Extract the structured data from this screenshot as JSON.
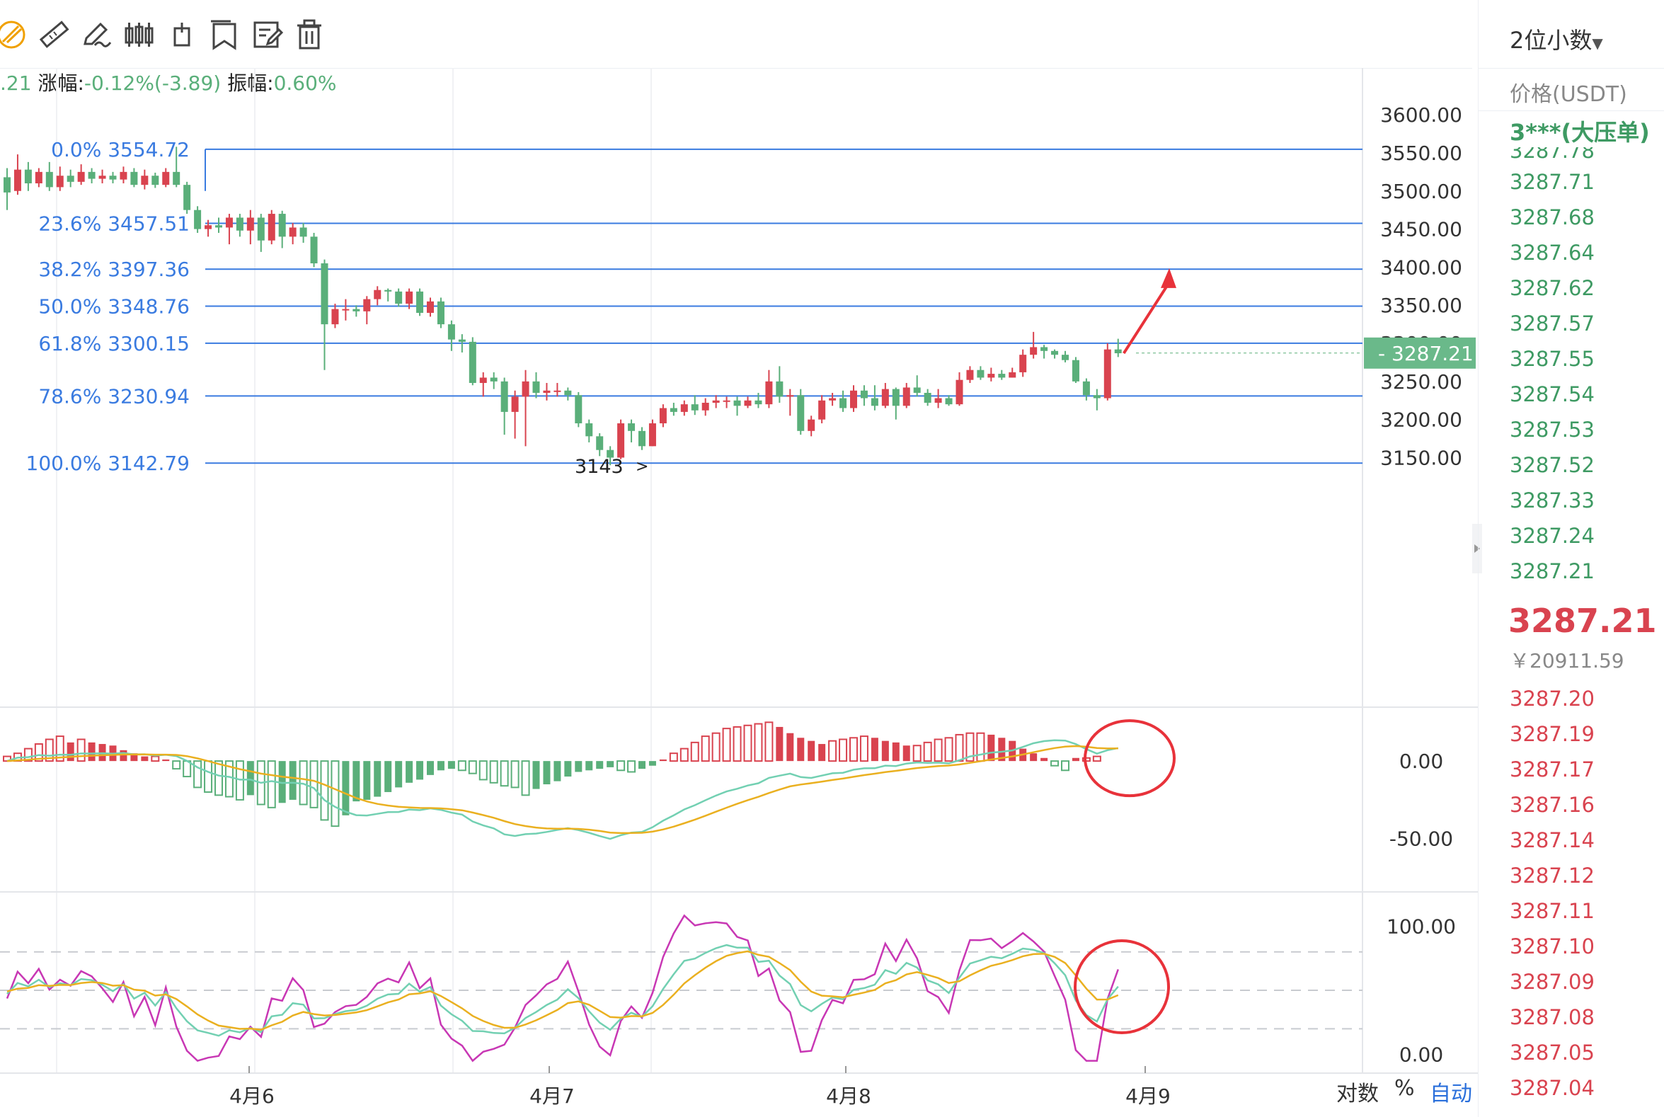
{
  "toolbar": {
    "tools": [
      {
        "icon": "ruler-icon"
      },
      {
        "icon": "pen-icon"
      },
      {
        "icon": "candlestick-icon"
      },
      {
        "icon": "tag-icon"
      },
      {
        "icon": "bookmark-icon"
      },
      {
        "icon": "edit-note-icon"
      },
      {
        "icon": "trash-icon"
      }
    ]
  },
  "infobar": {
    "prefix": ".21",
    "change_label": "涨幅:",
    "change_value": "-0.12%(-3.89)",
    "amplitude_label": "振幅:",
    "amplitude_value": "0.60%"
  },
  "colors": {
    "up": "#d9434f",
    "down": "#5aaf7a",
    "fib": "#3a7be0",
    "dif": "#72d0b2",
    "dea": "#eab020",
    "kdj_j": "#c837b4",
    "annotation": "#e8323a"
  },
  "chart_data": [
    {
      "type": "candlestick",
      "ylim": [
        3130,
        3615
      ],
      "yticks": [
        "3600.00",
        "3550.00",
        "3500.00",
        "3450.00",
        "3400.00",
        "3350.00",
        "3300.00",
        "3250.00",
        "3200.00",
        "3150.00"
      ],
      "xticks": [
        "4月6",
        "4月7",
        "4月8",
        "4月9"
      ],
      "last_price": "3287.21",
      "low_marker": "3143",
      "fib_levels": [
        {
          "label": "0.0% 3554.72",
          "value": 3554.72
        },
        {
          "label": "23.6% 3457.51",
          "value": 3457.51
        },
        {
          "label": "38.2% 3397.36",
          "value": 3397.36
        },
        {
          "label": "50.0% 3348.76",
          "value": 3348.76
        },
        {
          "label": "61.8% 3300.15",
          "value": 3300.15
        },
        {
          "label": "78.6% 3230.94",
          "value": 3230.94
        },
        {
          "label": "100.0% 3142.79",
          "value": 3142.79
        }
      ],
      "candles": [
        [
          3518,
          3498,
          3530,
          3475
        ],
        [
          3500,
          3528,
          3548,
          3495
        ],
        [
          3528,
          3510,
          3538,
          3500
        ],
        [
          3510,
          3525,
          3530,
          3505
        ],
        [
          3525,
          3505,
          3538,
          3500
        ],
        [
          3505,
          3520,
          3532,
          3500
        ],
        [
          3520,
          3512,
          3528,
          3505
        ],
        [
          3512,
          3525,
          3535,
          3508
        ],
        [
          3525,
          3516,
          3530,
          3510
        ],
        [
          3516,
          3520,
          3528,
          3510
        ],
        [
          3520,
          3515,
          3525,
          3510
        ],
        [
          3515,
          3525,
          3532,
          3510
        ],
        [
          3525,
          3508,
          3530,
          3505
        ],
        [
          3508,
          3520,
          3528,
          3502
        ],
        [
          3520,
          3508,
          3524,
          3504
        ],
        [
          3508,
          3525,
          3530,
          3505
        ],
        [
          3525,
          3508,
          3558,
          3505
        ],
        [
          3508,
          3475,
          3512,
          3470
        ],
        [
          3475,
          3450,
          3480,
          3445
        ],
        [
          3450,
          3455,
          3462,
          3440
        ],
        [
          3455,
          3452,
          3465,
          3445
        ],
        [
          3452,
          3465,
          3470,
          3430
        ],
        [
          3465,
          3448,
          3470,
          3440
        ],
        [
          3448,
          3465,
          3475,
          3430
        ],
        [
          3465,
          3435,
          3470,
          3420
        ],
        [
          3435,
          3470,
          3475,
          3430
        ],
        [
          3470,
          3440,
          3474,
          3425
        ],
        [
          3440,
          3452,
          3458,
          3430
        ],
        [
          3452,
          3440,
          3458,
          3432
        ],
        [
          3440,
          3405,
          3445,
          3400
        ],
        [
          3405,
          3325,
          3410,
          3265
        ],
        [
          3325,
          3345,
          3352,
          3320
        ],
        [
          3345,
          3345,
          3358,
          3330
        ],
        [
          3345,
          3342,
          3350,
          3335
        ],
        [
          3342,
          3358,
          3362,
          3325
        ],
        [
          3358,
          3370,
          3375,
          3350
        ],
        [
          3370,
          3368,
          3372,
          3355
        ],
        [
          3368,
          3352,
          3372,
          3348
        ],
        [
          3352,
          3368,
          3372,
          3345
        ],
        [
          3368,
          3340,
          3372,
          3336
        ],
        [
          3340,
          3355,
          3360,
          3335
        ],
        [
          3355,
          3325,
          3360,
          3320
        ],
        [
          3325,
          3305,
          3330,
          3290
        ],
        [
          3305,
          3302,
          3312,
          3288
        ],
        [
          3302,
          3248,
          3308,
          3245
        ],
        [
          3248,
          3255,
          3262,
          3230
        ],
        [
          3255,
          3250,
          3262,
          3240
        ],
        [
          3250,
          3210,
          3255,
          3180
        ],
        [
          3210,
          3230,
          3238,
          3175
        ],
        [
          3230,
          3250,
          3265,
          3165
        ],
        [
          3250,
          3235,
          3262,
          3228
        ],
        [
          3235,
          3238,
          3248,
          3225
        ],
        [
          3238,
          3238,
          3248,
          3230
        ],
        [
          3238,
          3232,
          3242,
          3225
        ],
        [
          3232,
          3195,
          3236,
          3190
        ],
        [
          3195,
          3178,
          3200,
          3170
        ],
        [
          3178,
          3160,
          3182,
          3152
        ],
        [
          3160,
          3150,
          3165,
          3140
        ],
        [
          3150,
          3195,
          3200,
          3148
        ],
        [
          3195,
          3185,
          3200,
          3170
        ],
        [
          3185,
          3165,
          3190,
          3160
        ],
        [
          3165,
          3195,
          3200,
          3165
        ],
        [
          3195,
          3215,
          3220,
          3190
        ],
        [
          3215,
          3210,
          3222,
          3205
        ],
        [
          3210,
          3220,
          3225,
          3205
        ],
        [
          3220,
          3212,
          3232,
          3206
        ],
        [
          3212,
          3222,
          3228,
          3205
        ],
        [
          3222,
          3225,
          3232,
          3215
        ],
        [
          3225,
          3225,
          3230,
          3215
        ],
        [
          3225,
          3218,
          3230,
          3205
        ],
        [
          3218,
          3225,
          3230,
          3215
        ],
        [
          3225,
          3220,
          3235,
          3215
        ],
        [
          3220,
          3250,
          3265,
          3215
        ],
        [
          3250,
          3230,
          3270,
          3222
        ],
        [
          3230,
          3232,
          3240,
          3205
        ],
        [
          3232,
          3185,
          3240,
          3180
        ],
        [
          3185,
          3200,
          3205,
          3178
        ],
        [
          3200,
          3225,
          3232,
          3195
        ],
        [
          3225,
          3228,
          3235,
          3218
        ],
        [
          3228,
          3215,
          3238,
          3210
        ],
        [
          3215,
          3238,
          3245,
          3210
        ],
        [
          3238,
          3228,
          3245,
          3218
        ],
        [
          3228,
          3218,
          3245,
          3212
        ],
        [
          3218,
          3240,
          3248,
          3215
        ],
        [
          3240,
          3218,
          3242,
          3200
        ],
        [
          3218,
          3242,
          3248,
          3215
        ],
        [
          3242,
          3235,
          3258,
          3230
        ],
        [
          3235,
          3222,
          3240,
          3218
        ],
        [
          3222,
          3228,
          3240,
          3215
        ],
        [
          3228,
          3220,
          3232,
          3218
        ],
        [
          3220,
          3252,
          3262,
          3218
        ],
        [
          3252,
          3265,
          3270,
          3248
        ],
        [
          3265,
          3255,
          3270,
          3252
        ],
        [
          3255,
          3260,
          3268,
          3250
        ],
        [
          3260,
          3255,
          3265,
          3252
        ],
        [
          3255,
          3262,
          3268,
          3255
        ],
        [
          3262,
          3285,
          3292,
          3256
        ],
        [
          3285,
          3295,
          3315,
          3280
        ],
        [
          3295,
          3290,
          3298,
          3280
        ],
        [
          3290,
          3285,
          3292,
          3280
        ],
        [
          3285,
          3278,
          3290,
          3275
        ],
        [
          3278,
          3250,
          3282,
          3248
        ],
        [
          3250,
          3232,
          3254,
          3225
        ],
        [
          3232,
          3228,
          3240,
          3212
        ],
        [
          3228,
          3292,
          3300,
          3225
        ],
        [
          3292,
          3287,
          3306,
          3282
        ]
      ]
    },
    {
      "type": "bar",
      "name": "MACD",
      "ylim": [
        -78,
        27
      ],
      "yticks": [
        "0.00",
        "-50.00"
      ],
      "histogram": [
        3,
        5,
        8,
        11,
        14,
        16,
        12,
        14,
        12,
        11,
        10,
        7,
        5,
        3,
        3,
        1,
        -5,
        -10,
        -17,
        -20,
        -22,
        -23,
        -25,
        -22,
        -28,
        -30,
        -27,
        -25,
        -28,
        -30,
        -38,
        -42,
        -35,
        -26,
        -25,
        -23,
        -20,
        -17,
        -14,
        -12,
        -9,
        -6,
        -5,
        -6,
        -8,
        -12,
        -14,
        -16,
        -17,
        -22,
        -18,
        -15,
        -13,
        -10,
        -7,
        -6,
        -5,
        -4,
        -6,
        -7,
        -5,
        -3,
        1,
        5,
        8,
        12,
        16,
        18,
        21,
        22,
        23,
        24,
        25,
        22,
        18,
        15,
        13,
        11,
        13,
        14,
        15,
        16,
        15,
        13,
        12,
        10,
        10,
        12,
        14,
        15,
        17,
        18,
        18,
        17,
        15,
        13,
        8,
        5,
        2,
        -3,
        -6,
        2,
        2,
        3
      ]
    },
    {
      "type": "line",
      "name": "KDJ",
      "ylim": [
        -8,
        118
      ],
      "yticks": [
        "100.00",
        "0.00"
      ],
      "dashed": [
        80,
        50,
        20
      ]
    }
  ],
  "order_book": {
    "decimals": "2位小数",
    "price_header": "价格(USDT)",
    "top_word": "3***(大压单)",
    "partial": "3287.78",
    "asks": [
      "3287.71",
      "3287.68",
      "3287.64",
      "3287.62",
      "3287.57",
      "3287.55",
      "3287.54",
      "3287.53",
      "3287.52",
      "3287.33",
      "3287.24",
      "3287.21"
    ],
    "last_price": "3287.21",
    "cny": "￥20911.59",
    "bids": [
      "3287.20",
      "3287.19",
      "3287.17",
      "3287.16",
      "3287.14",
      "3287.12",
      "3287.11",
      "3287.10",
      "3287.09",
      "3287.08",
      "3287.05",
      "3287.04"
    ]
  },
  "bottom": {
    "log_label": "对数",
    "percent_label": "%",
    "auto_label": "自动"
  }
}
